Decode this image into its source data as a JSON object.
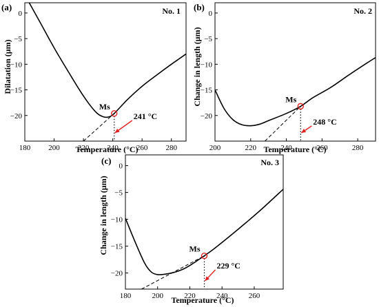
{
  "chart_data": [
    {
      "type": "line",
      "panel": "(a)",
      "title": "No. 1",
      "xlabel": "Temperature (°C)",
      "ylabel": "Dilatation (μm)",
      "xlim": [
        180,
        290
      ],
      "ylim": [
        -25,
        2
      ],
      "xticks": [
        180,
        200,
        220,
        240,
        260,
        280
      ],
      "yticks": [
        0,
        -5,
        -10,
        -15,
        -20
      ],
      "curve": {
        "x": [
          183,
          190,
          200,
          210,
          220,
          228,
          233,
          237,
          241,
          250,
          260,
          270,
          280,
          290
        ],
        "y": [
          2,
          -1.6,
          -6.8,
          -11.6,
          -16.2,
          -19.2,
          -20.2,
          -20.3,
          -19.6,
          -16.9,
          -14.3,
          -12.1,
          -10.0,
          -8.0
        ]
      },
      "tangent": {
        "x": [
          220,
          241
        ],
        "y": [
          -25.0,
          -19.6
        ]
      },
      "ms": {
        "x": 241,
        "y": -19.6,
        "label": "Ms",
        "temp_label": "241 °C"
      }
    },
    {
      "type": "line",
      "panel": "(b)",
      "title": "No. 2",
      "xlabel": "Temperature (°C)",
      "ylabel": "Change in length (μm)",
      "xlim": [
        200,
        290
      ],
      "ylim": [
        -25,
        2
      ],
      "xticks": [
        200,
        220,
        240,
        260,
        280
      ],
      "yticks": [
        0,
        -5,
        -10,
        -15,
        -20
      ],
      "curve": {
        "x": [
          200,
          205,
          210,
          215,
          220,
          225,
          230,
          240,
          248,
          255,
          265,
          275,
          285,
          290
        ],
        "y": [
          -15.0,
          -18.6,
          -20.8,
          -21.8,
          -22.0,
          -21.7,
          -21.0,
          -19.6,
          -18.2,
          -16.5,
          -14.5,
          -12.1,
          -9.8,
          -8.7
        ]
      },
      "tangent": {
        "x": [
          228,
          248
        ],
        "y": [
          -25.0,
          -18.2
        ]
      },
      "ms": {
        "x": 248,
        "y": -18.2,
        "label": "Ms",
        "temp_label": "248 °C"
      }
    },
    {
      "type": "line",
      "panel": "(c)",
      "title": "No. 3",
      "xlabel": "Temperature (°C)",
      "ylabel": "Change in length (μm)",
      "xlim": [
        180,
        278
      ],
      "ylim": [
        -23,
        2
      ],
      "xticks": [
        180,
        200,
        220,
        240,
        260
      ],
      "yticks": [
        0,
        -5,
        -10,
        -15,
        -20
      ],
      "curve": {
        "x": [
          180,
          186,
          192,
          196,
          200,
          205,
          210,
          215,
          220,
          229,
          235,
          245,
          255,
          265,
          278
        ],
        "y": [
          -9.8,
          -14.2,
          -18.2,
          -19.8,
          -20.3,
          -20.2,
          -19.9,
          -19.4,
          -18.6,
          -16.8,
          -15.5,
          -13.1,
          -10.6,
          -8.0,
          -4.4
        ]
      },
      "tangent": {
        "x": [
          190,
          229
        ],
        "y": [
          -23.0,
          -16.8
        ]
      },
      "ms": {
        "x": 229,
        "y": -16.8,
        "label": "Ms",
        "temp_label": "229 °C"
      }
    }
  ],
  "colors": {
    "line": "#000000",
    "marker": "#e02020",
    "arrow": "#e02020"
  }
}
